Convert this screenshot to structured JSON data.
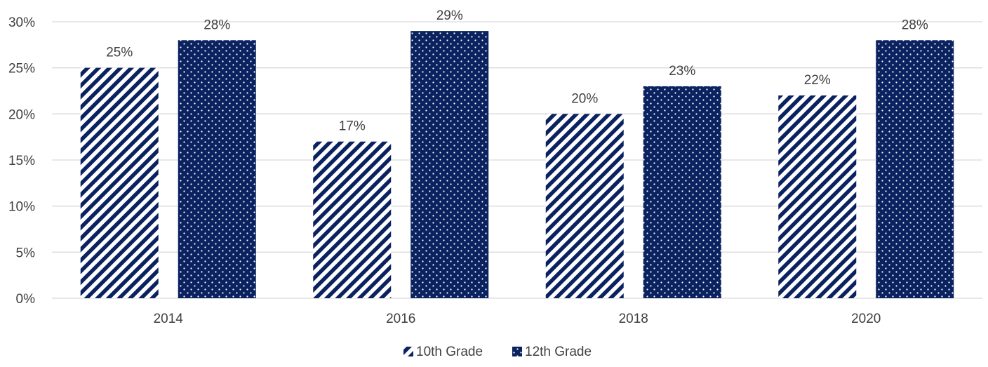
{
  "chart_data": {
    "type": "bar",
    "categories": [
      "2014",
      "2016",
      "2018",
      "2020"
    ],
    "series": [
      {
        "name": "10th Grade",
        "values": [
          25,
          17,
          20,
          22
        ],
        "labels": [
          "25%",
          "17%",
          "20%",
          "22%"
        ],
        "pattern": "diagonal-stripes"
      },
      {
        "name": "12th Grade",
        "values": [
          28,
          29,
          23,
          28
        ],
        "labels": [
          "28%",
          "29%",
          "23%",
          "28%"
        ],
        "pattern": "dots"
      }
    ],
    "y_ticks": [
      "0%",
      "5%",
      "10%",
      "15%",
      "20%",
      "25%",
      "30%"
    ],
    "ylim": [
      0,
      30
    ],
    "grid": true,
    "legend_position": "bottom-center",
    "colors": {
      "bar": "#0b2260",
      "grid": "#d9d9d9",
      "text": "#404040"
    }
  }
}
